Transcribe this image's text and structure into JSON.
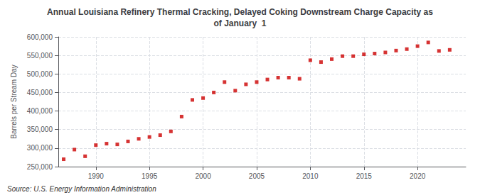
{
  "chart_data": {
    "type": "scatter",
    "title": "Annual Louisiana Refinery Thermal Cracking, Delayed Coking Downstream Charge Capacity as\nof January  1",
    "ylabel": "Barrels per Stream Day",
    "annotations": [
      "Source: U.S. Energy Information Administration"
    ],
    "color": "#cc0000",
    "marker": "square",
    "x": [
      1987,
      1988,
      1989,
      1990,
      1991,
      1992,
      1993,
      1994,
      1995,
      1996,
      1997,
      1998,
      1999,
      2000,
      2001,
      2002,
      2003,
      2004,
      2005,
      2006,
      2007,
      2008,
      2009,
      2010,
      2011,
      2012,
      2013,
      2014,
      2015,
      2016,
      2017,
      2018,
      2019,
      2020,
      2021,
      2022,
      2023
    ],
    "values": [
      270000,
      296000,
      278000,
      308000,
      312000,
      310000,
      318000,
      325000,
      330000,
      335000,
      345000,
      385000,
      430000,
      435000,
      450000,
      478000,
      455000,
      472000,
      478000,
      485000,
      490000,
      490000,
      487000,
      537000,
      532000,
      540000,
      548000,
      548000,
      553000,
      555000,
      558000,
      563000,
      567000,
      575000,
      585000,
      562000,
      565000
    ],
    "xlim": [
      1986.5,
      2024.5
    ],
    "xticks": [
      1990,
      1995,
      2000,
      2005,
      2010,
      2015,
      2020
    ],
    "ylim": [
      250000,
      600000
    ],
    "yticks": [
      {
        "value": 250000,
        "label": "250,000"
      },
      {
        "value": 300000,
        "label": "300,000"
      },
      {
        "value": 350000,
        "label": "350,000"
      },
      {
        "value": 400000,
        "label": "400,000"
      },
      {
        "value": 450000,
        "label": "450,000"
      },
      {
        "value": 500000,
        "label": "500,000"
      },
      {
        "value": 550000,
        "label": "550,000"
      },
      {
        "value": 600000,
        "label": "600,000"
      }
    ],
    "grid": true
  }
}
